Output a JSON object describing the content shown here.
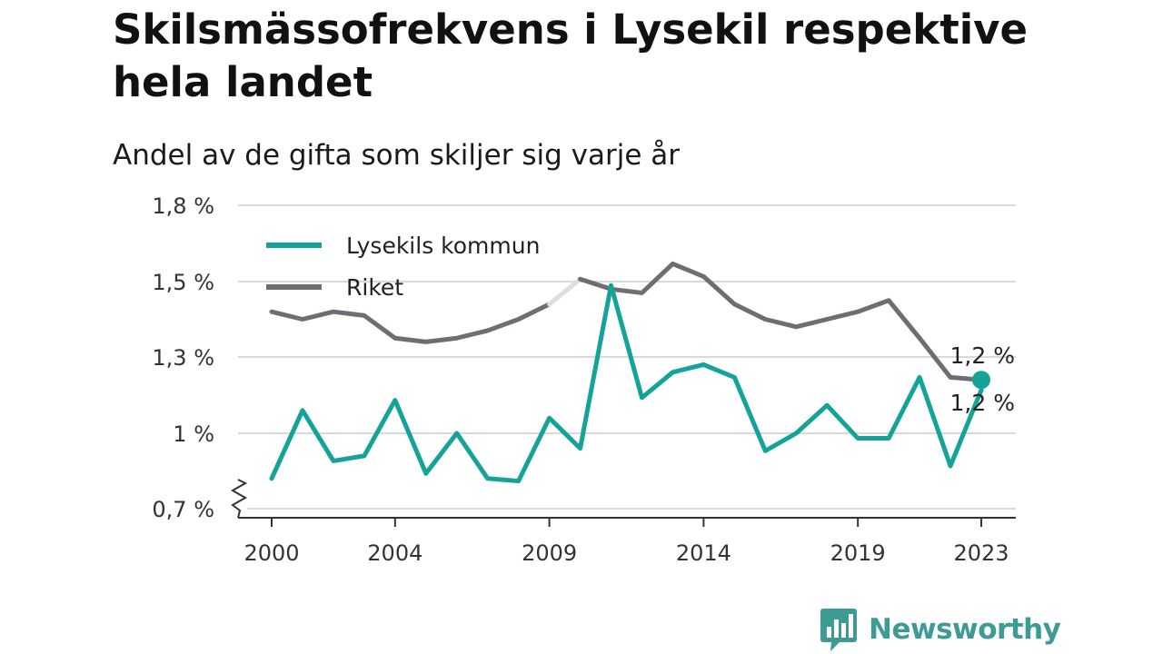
{
  "title": "Skilsmässofrekvens i Lysekil respektive hela landet",
  "subtitle": "Andel av de gifta som skiljer sig varje år",
  "brand": {
    "name": "Newsworthy",
    "color": "#3d9b96",
    "icon": "bar-chart-speech-bubble-icon"
  },
  "chart_data": {
    "type": "line",
    "x": [
      2000,
      2001,
      2002,
      2003,
      2004,
      2005,
      2006,
      2007,
      2008,
      2009,
      2010,
      2011,
      2012,
      2013,
      2014,
      2015,
      2016,
      2017,
      2018,
      2019,
      2020,
      2021,
      2022,
      2023
    ],
    "xticks": [
      {
        "value": 2000,
        "label": "2000"
      },
      {
        "value": 2004,
        "label": "2004"
      },
      {
        "value": 2009,
        "label": "2009"
      },
      {
        "value": 2014,
        "label": "2014"
      },
      {
        "value": 2019,
        "label": "2019"
      },
      {
        "value": 2023,
        "label": "2023"
      }
    ],
    "yticks": [
      {
        "value": 0.7,
        "label": "0,7 %"
      },
      {
        "value": 1.0,
        "label": "1 %"
      },
      {
        "value": 1.3,
        "label": "1,3 %"
      },
      {
        "value": 1.5,
        "label": "1,5 %"
      },
      {
        "value": 1.8,
        "label": "1,8 %"
      }
    ],
    "ylim": [
      0.7,
      1.8
    ],
    "axis_break": true,
    "grid": "horizontal",
    "legend_position": "top-left",
    "series": [
      {
        "name": "Lysekils kommun",
        "color": "#14a398",
        "values": [
          0.82,
          1.09,
          0.89,
          0.91,
          1.13,
          0.84,
          1.0,
          0.82,
          0.81,
          1.06,
          0.94,
          1.49,
          1.14,
          1.24,
          1.27,
          1.22,
          0.93,
          1.0,
          1.11,
          0.98,
          0.98,
          1.22,
          0.87,
          1.17
        ],
        "end_label": "1,2 %"
      },
      {
        "name": "Riket",
        "color": "#6e6d74",
        "values": [
          1.42,
          1.4,
          1.42,
          1.41,
          1.35,
          1.34,
          1.35,
          1.37,
          1.4,
          1.44,
          1.51,
          1.48,
          1.47,
          1.57,
          1.52,
          1.44,
          1.4,
          1.38,
          1.4,
          1.42,
          1.45,
          1.35,
          1.22,
          1.21
        ],
        "end_label": "1,2 %",
        "missing_segment": [
          2009,
          2010
        ]
      }
    ]
  }
}
